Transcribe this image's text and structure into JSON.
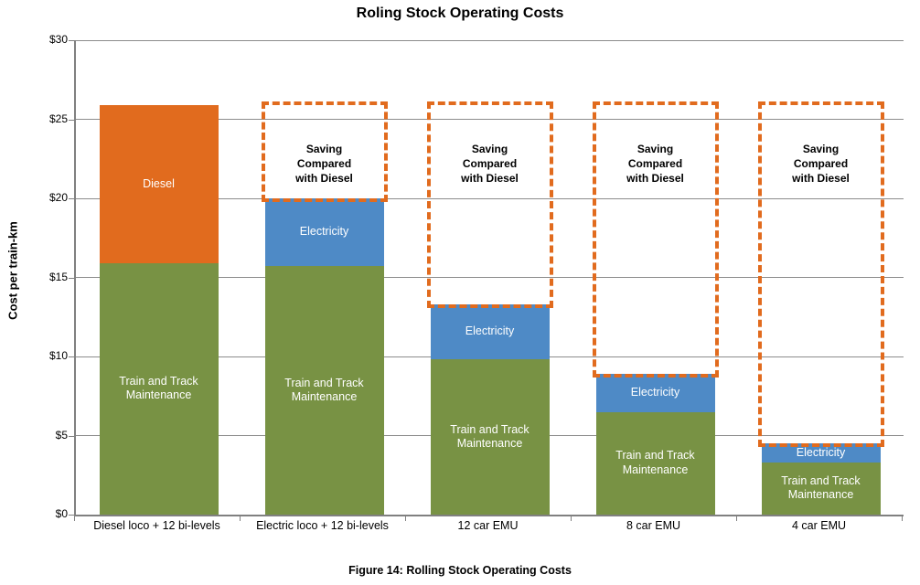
{
  "title": "Roling Stock Operating Costs",
  "caption": "Figure 14: Rolling Stock Operating Costs",
  "chart_data": {
    "type": "bar",
    "stacked": true,
    "title": "Roling Stock Operating Costs",
    "ylabel": "Cost per train-km",
    "xlabel": "",
    "ylim": [
      0,
      30
    ],
    "ytick_step": 5,
    "ytick_prefix": "$",
    "grid": true,
    "legend": "none",
    "categories": [
      "Diesel loco + 12 bi-levels",
      "Electric loco + 12 bi-levels",
      "12 car EMU",
      "8 car EMU",
      "4 car EMU"
    ],
    "series": [
      {
        "name": "Train and Track Maintenance",
        "color": "#789244",
        "values": [
          15.9,
          15.7,
          9.8,
          6.5,
          3.3
        ]
      },
      {
        "name": "Diesel",
        "color": "#E16B1E",
        "values": [
          10.0,
          0,
          0,
          0,
          0
        ]
      },
      {
        "name": "Electricity",
        "color": "#4E8AC6",
        "values": [
          0,
          4.3,
          3.5,
          2.4,
          1.2
        ]
      }
    ],
    "totals": [
      25.9,
      20.0,
      13.3,
      8.9,
      4.5
    ],
    "annotations": {
      "saving_box": {
        "label_lines": [
          "Saving",
          "Compared",
          "with Diesel"
        ],
        "top_value": 25.9,
        "border_color": "#E16B1E",
        "category_indexes": [
          1,
          2,
          3,
          4
        ]
      }
    },
    "colors": {
      "gridline": "#8C8C8C",
      "axis": "#808080",
      "bar_label_text": "#FFFFFF",
      "annotation_text": "#000000",
      "title_text": "#000000"
    }
  }
}
